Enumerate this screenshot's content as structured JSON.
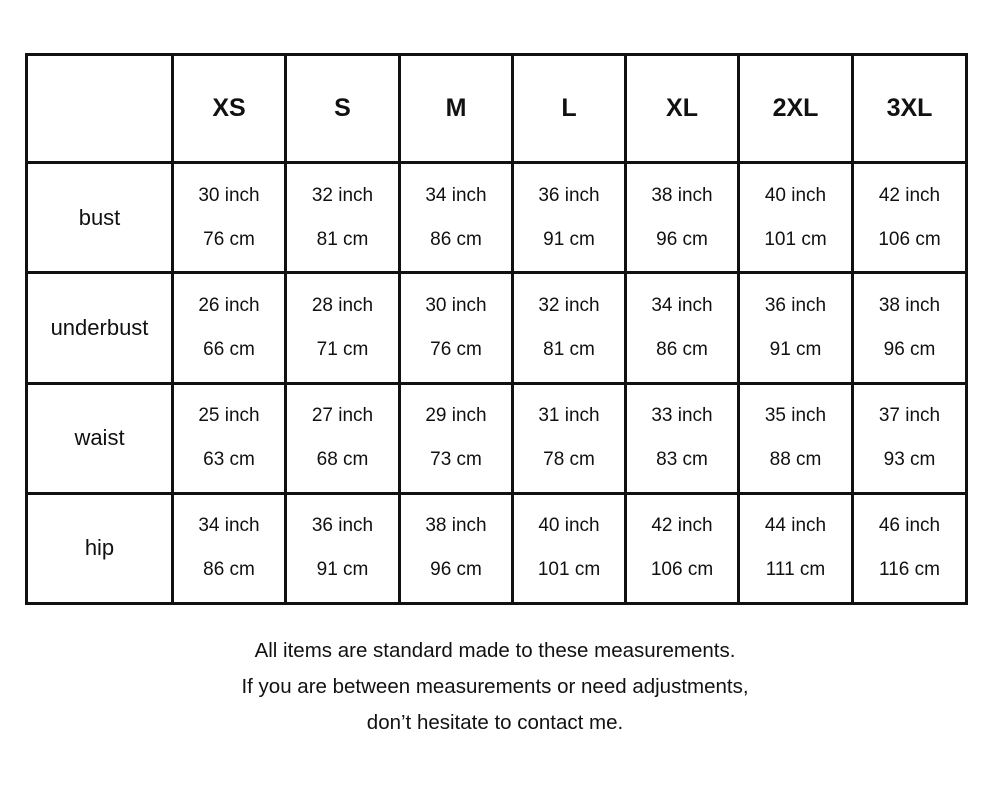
{
  "table": {
    "columns": [
      "",
      "XS",
      "S",
      "M",
      "L",
      "XL",
      "2XL",
      "3XL"
    ],
    "rows": [
      {
        "label": "bust",
        "cells": [
          [
            "30 inch",
            "76 cm"
          ],
          [
            "32 inch",
            "81 cm"
          ],
          [
            "34 inch",
            "86 cm"
          ],
          [
            "36 inch",
            "91 cm"
          ],
          [
            "38 inch",
            "96 cm"
          ],
          [
            "40 inch",
            "101 cm"
          ],
          [
            "42 inch",
            "106 cm"
          ]
        ]
      },
      {
        "label": "underbust",
        "cells": [
          [
            "26 inch",
            "66 cm"
          ],
          [
            "28 inch",
            "71 cm"
          ],
          [
            "30 inch",
            "76 cm"
          ],
          [
            "32 inch",
            "81 cm"
          ],
          [
            "34 inch",
            "86 cm"
          ],
          [
            "36 inch",
            "91 cm"
          ],
          [
            "38 inch",
            "96 cm"
          ]
        ]
      },
      {
        "label": "waist",
        "cells": [
          [
            "25 inch",
            "63 cm"
          ],
          [
            "27 inch",
            "68 cm"
          ],
          [
            "29 inch",
            "73 cm"
          ],
          [
            "31 inch",
            "78 cm"
          ],
          [
            "33 inch",
            "83 cm"
          ],
          [
            "35 inch",
            "88 cm"
          ],
          [
            "37 inch",
            "93 cm"
          ]
        ]
      },
      {
        "label": "hip",
        "cells": [
          [
            "34 inch",
            "86 cm"
          ],
          [
            "36 inch",
            "91 cm"
          ],
          [
            "38 inch",
            "96 cm"
          ],
          [
            "40 inch",
            "101 cm"
          ],
          [
            "42 inch",
            "106 cm"
          ],
          [
            "44 inch",
            "111 cm"
          ],
          [
            "46 inch",
            "116 cm"
          ]
        ]
      }
    ]
  },
  "note": [
    "All items are standard made to these measurements.",
    "If you are between measurements or need adjustments,",
    "don’t hesitate to contact me."
  ]
}
